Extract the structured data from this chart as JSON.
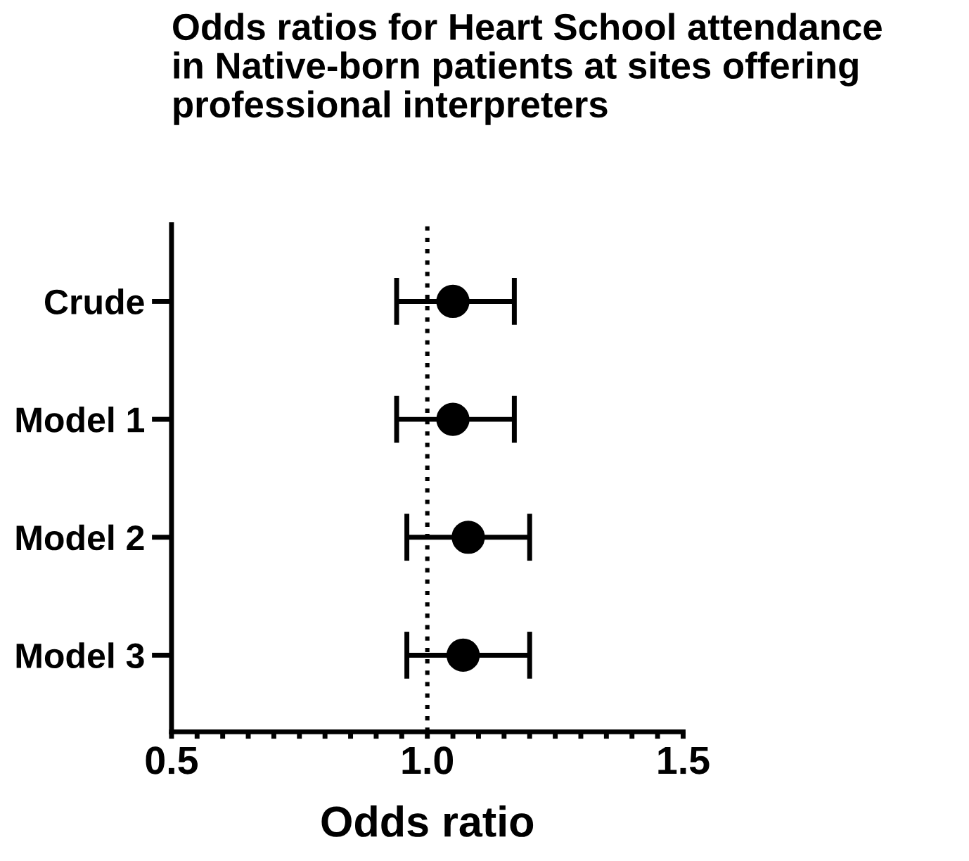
{
  "chart_data": {
    "type": "scatter",
    "orientation": "horizontal",
    "title": "Odds ratios for Heart School attendance\nin Native-born patients at sites offering\nprofessional interpreters",
    "xlabel": "Odds ratio",
    "categories": [
      "Crude",
      "Model 1",
      "Model 2",
      "Model 3"
    ],
    "series": [
      {
        "color": "#000000",
        "values": [
          1.05,
          1.05,
          1.08,
          1.07
        ],
        "errors": [
          [
            0.94,
            1.17
          ],
          [
            0.94,
            1.17
          ],
          [
            0.96,
            1.2
          ],
          [
            0.96,
            1.2
          ]
        ]
      }
    ],
    "marker": "circle",
    "xlim": [
      0.5,
      1.5
    ],
    "xticks": [
      {
        "value": 0.5,
        "label": "0.5"
      },
      {
        "value": 0.55,
        "label": null
      },
      {
        "value": 0.6,
        "label": null
      },
      {
        "value": 0.65,
        "label": null
      },
      {
        "value": 0.7,
        "label": null
      },
      {
        "value": 0.75,
        "label": null
      },
      {
        "value": 0.8,
        "label": null
      },
      {
        "value": 0.85,
        "label": null
      },
      {
        "value": 0.9,
        "label": null
      },
      {
        "value": 0.95,
        "label": null
      },
      {
        "value": 1.0,
        "label": "1.0"
      },
      {
        "value": 1.05,
        "label": null
      },
      {
        "value": 1.1,
        "label": null
      },
      {
        "value": 1.15,
        "label": null
      },
      {
        "value": 1.2,
        "label": null
      },
      {
        "value": 1.25,
        "label": null
      },
      {
        "value": 1.3,
        "label": null
      },
      {
        "value": 1.35,
        "label": null
      },
      {
        "value": 1.4,
        "label": null
      },
      {
        "value": 1.45,
        "label": null
      },
      {
        "value": 1.5,
        "label": "1.5"
      }
    ],
    "ref_lines": [
      {
        "axis": "x",
        "value": 1.0,
        "line_style": "dotted",
        "color": "#000000"
      }
    ],
    "grid": false,
    "legend": false
  }
}
